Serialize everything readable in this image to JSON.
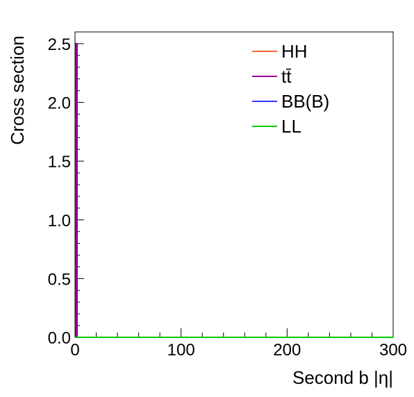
{
  "chart_data": {
    "type": "line",
    "xlabel": "Second b |η|",
    "ylabel": "Cross section",
    "xlim": [
      0,
      300
    ],
    "ylim": [
      0,
      2.6
    ],
    "x_ticks": [
      0,
      100,
      200,
      300
    ],
    "x_tick_labels": [
      "0",
      "100",
      "200",
      "300"
    ],
    "y_ticks": [
      0.0,
      0.5,
      1.0,
      1.5,
      2.0,
      2.5
    ],
    "y_tick_labels": [
      "0.0",
      "0.5",
      "1.0",
      "1.5",
      "2.0",
      "2.5"
    ],
    "grid": false,
    "legend_position": "top-right",
    "series": [
      {
        "name": "HH",
        "color": "#ff6633",
        "x": [
          0,
          2,
          300
        ],
        "y": [
          0,
          0,
          0
        ]
      },
      {
        "name": "tt̄",
        "color": "#990099",
        "x": [
          0,
          1,
          1,
          2,
          2,
          300
        ],
        "y": [
          0,
          0,
          2.5,
          2.5,
          0,
          0
        ]
      },
      {
        "name": "BB(B)",
        "color": "#3333ff",
        "x": [
          0,
          2,
          300
        ],
        "y": [
          0,
          0,
          0
        ]
      },
      {
        "name": "LL",
        "color": "#00cc00",
        "x": [
          0,
          2,
          300
        ],
        "y": [
          0,
          0,
          0
        ]
      }
    ]
  }
}
